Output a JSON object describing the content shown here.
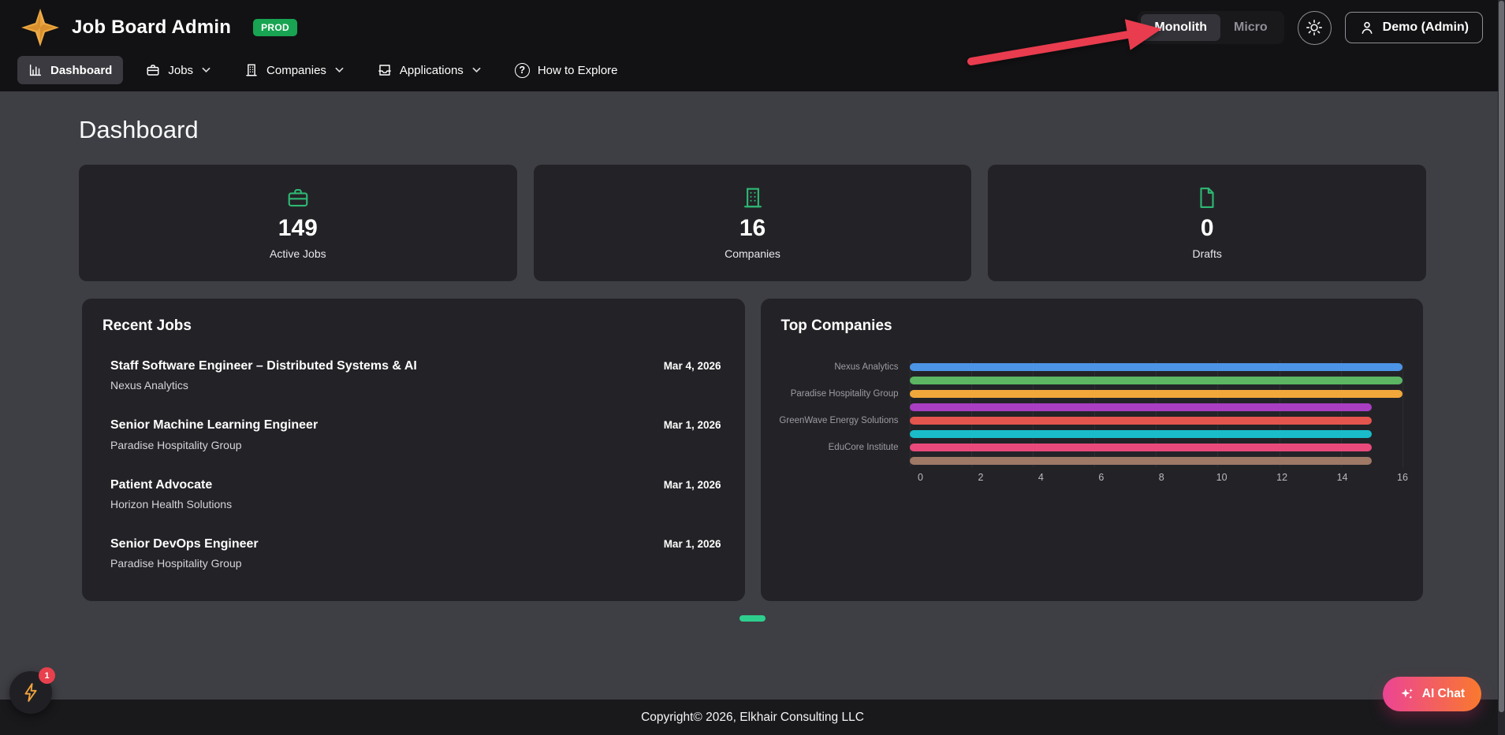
{
  "header": {
    "app_title": "Job Board Admin",
    "env_badge": "PROD",
    "view_toggle": {
      "monolith": "Monolith",
      "micro": "Micro",
      "active": "Monolith"
    },
    "user_button_label": "Demo (Admin)",
    "nav": [
      {
        "label": "Dashboard"
      },
      {
        "label": "Jobs"
      },
      {
        "label": "Companies"
      },
      {
        "label": "Applications"
      },
      {
        "label": "How to Explore"
      }
    ]
  },
  "page_title": "Dashboard",
  "stats": [
    {
      "icon": "briefcase-icon",
      "value": "149",
      "label": "Active Jobs"
    },
    {
      "icon": "building-icon",
      "value": "16",
      "label": "Companies"
    },
    {
      "icon": "file-icon",
      "value": "0",
      "label": "Drafts"
    }
  ],
  "recent_jobs": {
    "title": "Recent Jobs",
    "items": [
      {
        "title": "Staff Software Engineer – Distributed Systems & AI",
        "company": "Nexus Analytics",
        "date": "Mar 4, 2026"
      },
      {
        "title": "Senior Machine Learning Engineer",
        "company": "Paradise Hospitality Group",
        "date": "Mar 1, 2026"
      },
      {
        "title": "Patient Advocate",
        "company": "Horizon Health Solutions",
        "date": "Mar 1, 2026"
      },
      {
        "title": "Senior DevOps Engineer",
        "company": "Paradise Hospitality Group",
        "date": "Mar 1, 2026"
      }
    ]
  },
  "chart_data": {
    "type": "bar",
    "orientation": "horizontal",
    "title": "Top Companies",
    "categories": [
      "Nexus Analytics",
      "",
      "Paradise Hospitality Group",
      "",
      "GreenWave Energy Solutions",
      "",
      "EduCore Institute",
      ""
    ],
    "values": [
      16,
      16,
      16,
      15,
      15,
      15,
      15,
      15
    ],
    "bar_colors": [
      "#4c95e6",
      "#5bb563",
      "#f2a73b",
      "#a93ec2",
      "#e4554d",
      "#19bcc8",
      "#ea4a7b",
      "#9f7866"
    ],
    "xlim": [
      0,
      16
    ],
    "x_ticks": [
      0,
      2,
      4,
      6,
      8,
      10,
      12,
      14,
      16
    ],
    "grid": true,
    "legend": "none",
    "xlabel": "",
    "ylabel": ""
  },
  "footer_text": "Copyright© 2026, Elkhair Consulting LLC",
  "floating": {
    "notification_count": "1",
    "ai_chat_label": "AI Chat"
  },
  "colors": {
    "env_badge_green": "#18a452",
    "stat_icon_green": "#2eb873",
    "carousel_green": "#2ecf8e",
    "annotation_arrow_red": "#e93c4e",
    "ai_chat_gradient_start": "#ec4494",
    "ai_chat_gradient_end": "#f9792e",
    "bolt_orange": "#f2a43e",
    "logo_gold": "#eaa53f"
  }
}
